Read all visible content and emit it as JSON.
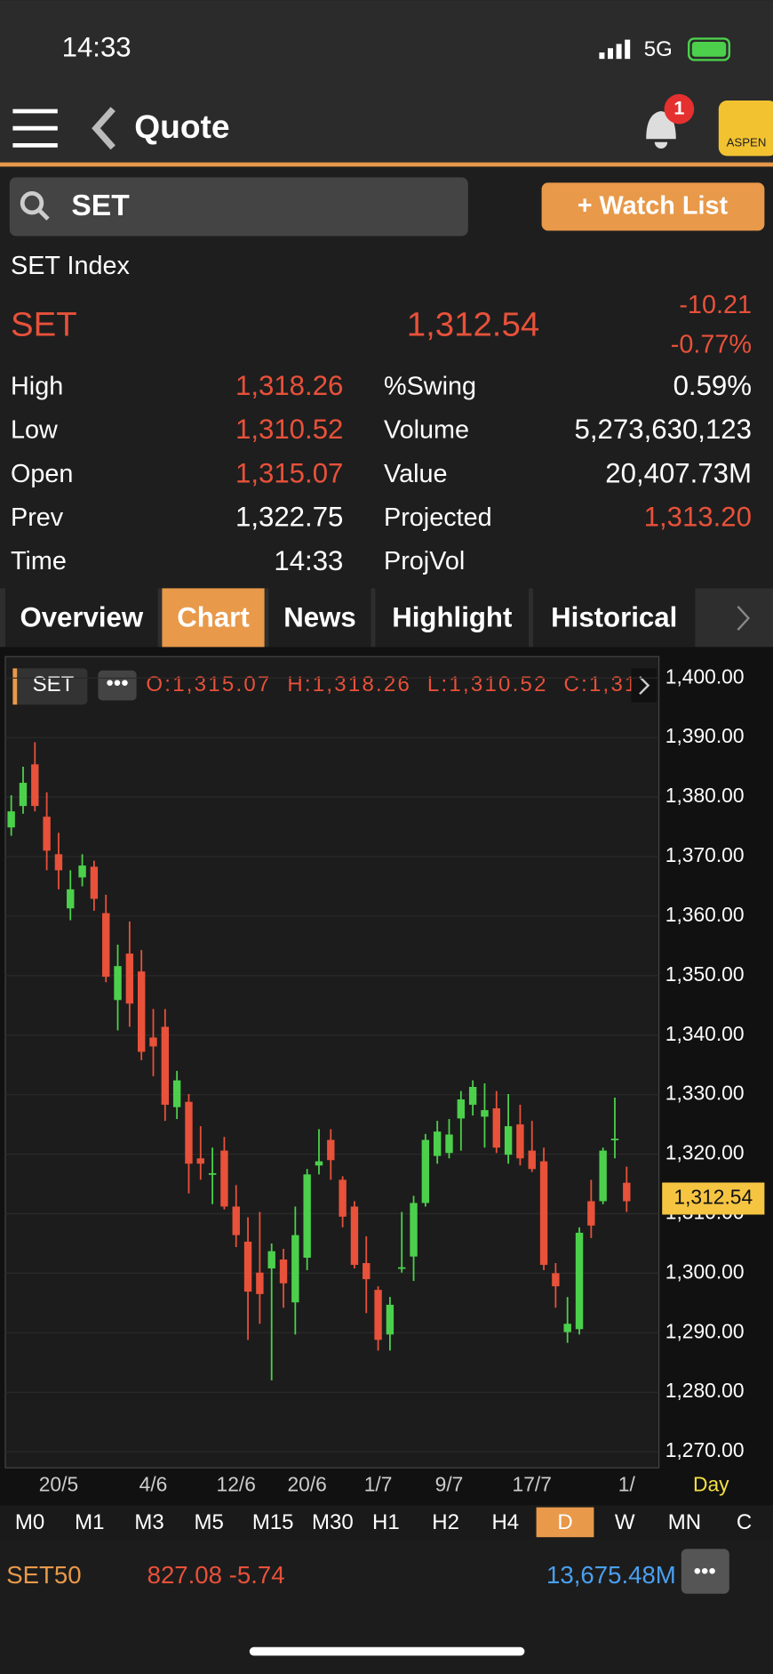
{
  "status": {
    "time": "14:33",
    "network": "5G"
  },
  "header": {
    "title": "Quote",
    "badge": "1",
    "logo": "ASPEN"
  },
  "search": {
    "query": "SET",
    "button": "+ Watch List"
  },
  "quote": {
    "name": "SET Index",
    "symbol": "SET",
    "last": "1,312.54",
    "change": "-10.21",
    "change_pct": "-0.77%",
    "left": [
      {
        "label": "High",
        "value": "1,318.26",
        "color": "#e8513a"
      },
      {
        "label": "Low",
        "value": "1,310.52",
        "color": "#e8513a"
      },
      {
        "label": "Open",
        "value": "1,315.07",
        "color": "#e8513a"
      },
      {
        "label": "Prev",
        "value": "1,322.75",
        "color": "#ffffff"
      },
      {
        "label": "Time",
        "value": "14:33",
        "color": "#ffffff"
      }
    ],
    "right": [
      {
        "label": "%Swing",
        "value": "0.59%",
        "color": "#ffffff"
      },
      {
        "label": "Volume",
        "value": "5,273,630,123",
        "color": "#ffffff"
      },
      {
        "label": "Value",
        "value": "20,407.73M",
        "color": "#ffffff"
      },
      {
        "label": "Projected",
        "value": "1,313.20",
        "color": "#e8513a"
      },
      {
        "label": "ProjVol"
      }
    ]
  },
  "tabs": {
    "items": [
      "Overview",
      "Chart",
      "News",
      "Highlight",
      "Historical"
    ],
    "active": 1
  },
  "chart_data": {
    "type": "candlestick",
    "symbol": "SET",
    "ohlc_text": "O:1,315.07  H:1,318.26  L:1,310.52  C:1,31",
    "up_color": "#4cd04c",
    "down_color": "#e8513a",
    "categories": [
      null,
      null,
      null,
      null,
      "20/5",
      null,
      null,
      null,
      null,
      null,
      null,
      null,
      "4/6",
      null,
      null,
      null,
      null,
      null,
      null,
      "12/6",
      null,
      null,
      null,
      null,
      null,
      "20/6",
      null,
      null,
      null,
      null,
      null,
      "1/7",
      null,
      null,
      null,
      null,
      null,
      "9/7",
      null,
      null,
      null,
      null,
      null,
      null,
      "17/7",
      null,
      null,
      null,
      null,
      null,
      null,
      null,
      "1/"
    ],
    "open": [
      1374.9,
      1378.5,
      1385.5,
      1376.7,
      1370.4,
      1361.3,
      1366.5,
      1368.3,
      1360.5,
      1345.9,
      1353.7,
      1350.7,
      1339.6,
      1341.4,
      1327.9,
      1328.8,
      1319.3,
      1316.6,
      1320.6,
      1311.2,
      1305.3,
      1300.1,
      1300.8,
      1302.3,
      1295.1,
      1302.6,
      1318.1,
      1322.4,
      1315.7,
      1311.2,
      1301.7,
      1297.2,
      1289.7,
      1300.8,
      1302.8,
      1311.8,
      1319.7,
      1320.2,
      1326.0,
      1328.3,
      1326.3,
      1327.7,
      1319.9,
      1325.0,
      1320.6,
      1318.8,
      1300.0,
      1290.1,
      1290.6,
      1312.1,
      1312.1,
      1322.4,
      1315.2
    ],
    "high": [
      1380.3,
      1385.1,
      1389.2,
      1380.8,
      1374.0,
      1367.7,
      1370.4,
      1369.3,
      1363.6,
      1355.2,
      1359.1,
      1354.3,
      1344.4,
      1344.4,
      1334.0,
      1330.1,
      1324.7,
      1321.1,
      1322.9,
      1314.8,
      1309.4,
      1310.3,
      1305.0,
      1304.1,
      1311.2,
      1317.5,
      1324.2,
      1324.2,
      1316.3,
      1312.1,
      1306.2,
      1297.8,
      1296.0,
      1310.3,
      1313.0,
      1323.4,
      1325.6,
      1325.9,
      1330.6,
      1332.4,
      1331.9,
      1330.6,
      1330.1,
      1328.3,
      1325.6,
      1321.1,
      1301.7,
      1296.0,
      1307.7,
      1315.7,
      1321.1,
      1329.5,
      1317.9
    ],
    "low": [
      1373.5,
      1377.2,
      1377.6,
      1367.7,
      1364.5,
      1359.3,
      1365.0,
      1360.9,
      1348.9,
      1340.8,
      1341.4,
      1335.8,
      1333.1,
      1325.6,
      1325.9,
      1313.4,
      1315.7,
      1311.6,
      1310.7,
      1304.4,
      1288.8,
      1291.5,
      1282.0,
      1294.2,
      1289.7,
      1300.5,
      1316.6,
      1315.7,
      1307.7,
      1300.8,
      1293.3,
      1287.0,
      1287.0,
      1300.1,
      1298.7,
      1311.2,
      1318.4,
      1319.3,
      1320.6,
      1326.5,
      1321.1,
      1320.2,
      1318.4,
      1318.1,
      1317.0,
      1300.5,
      1294.2,
      1288.3,
      1289.7,
      1305.9,
      1311.6,
      1319.3,
      1310.3
    ],
    "close": [
      1377.6,
      1382.4,
      1378.5,
      1371.0,
      1367.7,
      1364.5,
      1368.5,
      1362.9,
      1349.8,
      1351.6,
      1345.3,
      1337.2,
      1338.1,
      1328.3,
      1332.4,
      1318.4,
      1318.4,
      1316.8,
      1311.2,
      1306.4,
      1296.9,
      1296.5,
      1303.7,
      1298.3,
      1306.4,
      1316.6,
      1318.8,
      1319.0,
      1309.5,
      1301.4,
      1299.0,
      1288.8,
      1294.7,
      1301.0,
      1311.8,
      1322.4,
      1323.8,
      1323.3,
      1329.2,
      1331.3,
      1327.4,
      1321.1,
      1324.7,
      1319.3,
      1317.5,
      1301.4,
      1297.8,
      1291.5,
      1306.8,
      1308.0,
      1320.6,
      1322.6,
      1312.1
    ],
    "ylim": [
      1267.3,
      1403.6
    ],
    "yticks": [
      {
        "value": 1400,
        "label": "1,400.00"
      },
      {
        "value": 1390,
        "label": "1,390.00"
      },
      {
        "value": 1380,
        "label": "1,380.00"
      },
      {
        "value": 1370,
        "label": "1,370.00"
      },
      {
        "value": 1360,
        "label": "1,360.00"
      },
      {
        "value": 1350,
        "label": "1,350.00"
      },
      {
        "value": 1340,
        "label": "1,340.00"
      },
      {
        "value": 1330,
        "label": "1,330.00"
      },
      {
        "value": 1320,
        "label": "1,320.00"
      },
      {
        "value": 1310,
        "label": "1,310.00"
      },
      {
        "value": 1300,
        "label": "1,300.00"
      },
      {
        "value": 1290,
        "label": "1,290.00"
      },
      {
        "value": 1280,
        "label": "1,280.00"
      },
      {
        "value": 1270,
        "label": "1,270.00"
      }
    ],
    "last": {
      "value": 1312.54,
      "label": "1,312.54"
    },
    "grid": true,
    "period": "Day"
  },
  "timeframes": {
    "items": [
      "M0",
      "M1",
      "M3",
      "M5",
      "M15",
      "M30",
      "H1",
      "H2",
      "H4",
      "D",
      "W",
      "MN",
      "C"
    ],
    "active": 9
  },
  "ticker": {
    "symbol": "SET50",
    "price": "827.08 -5.74",
    "value": "13,675.48M"
  }
}
